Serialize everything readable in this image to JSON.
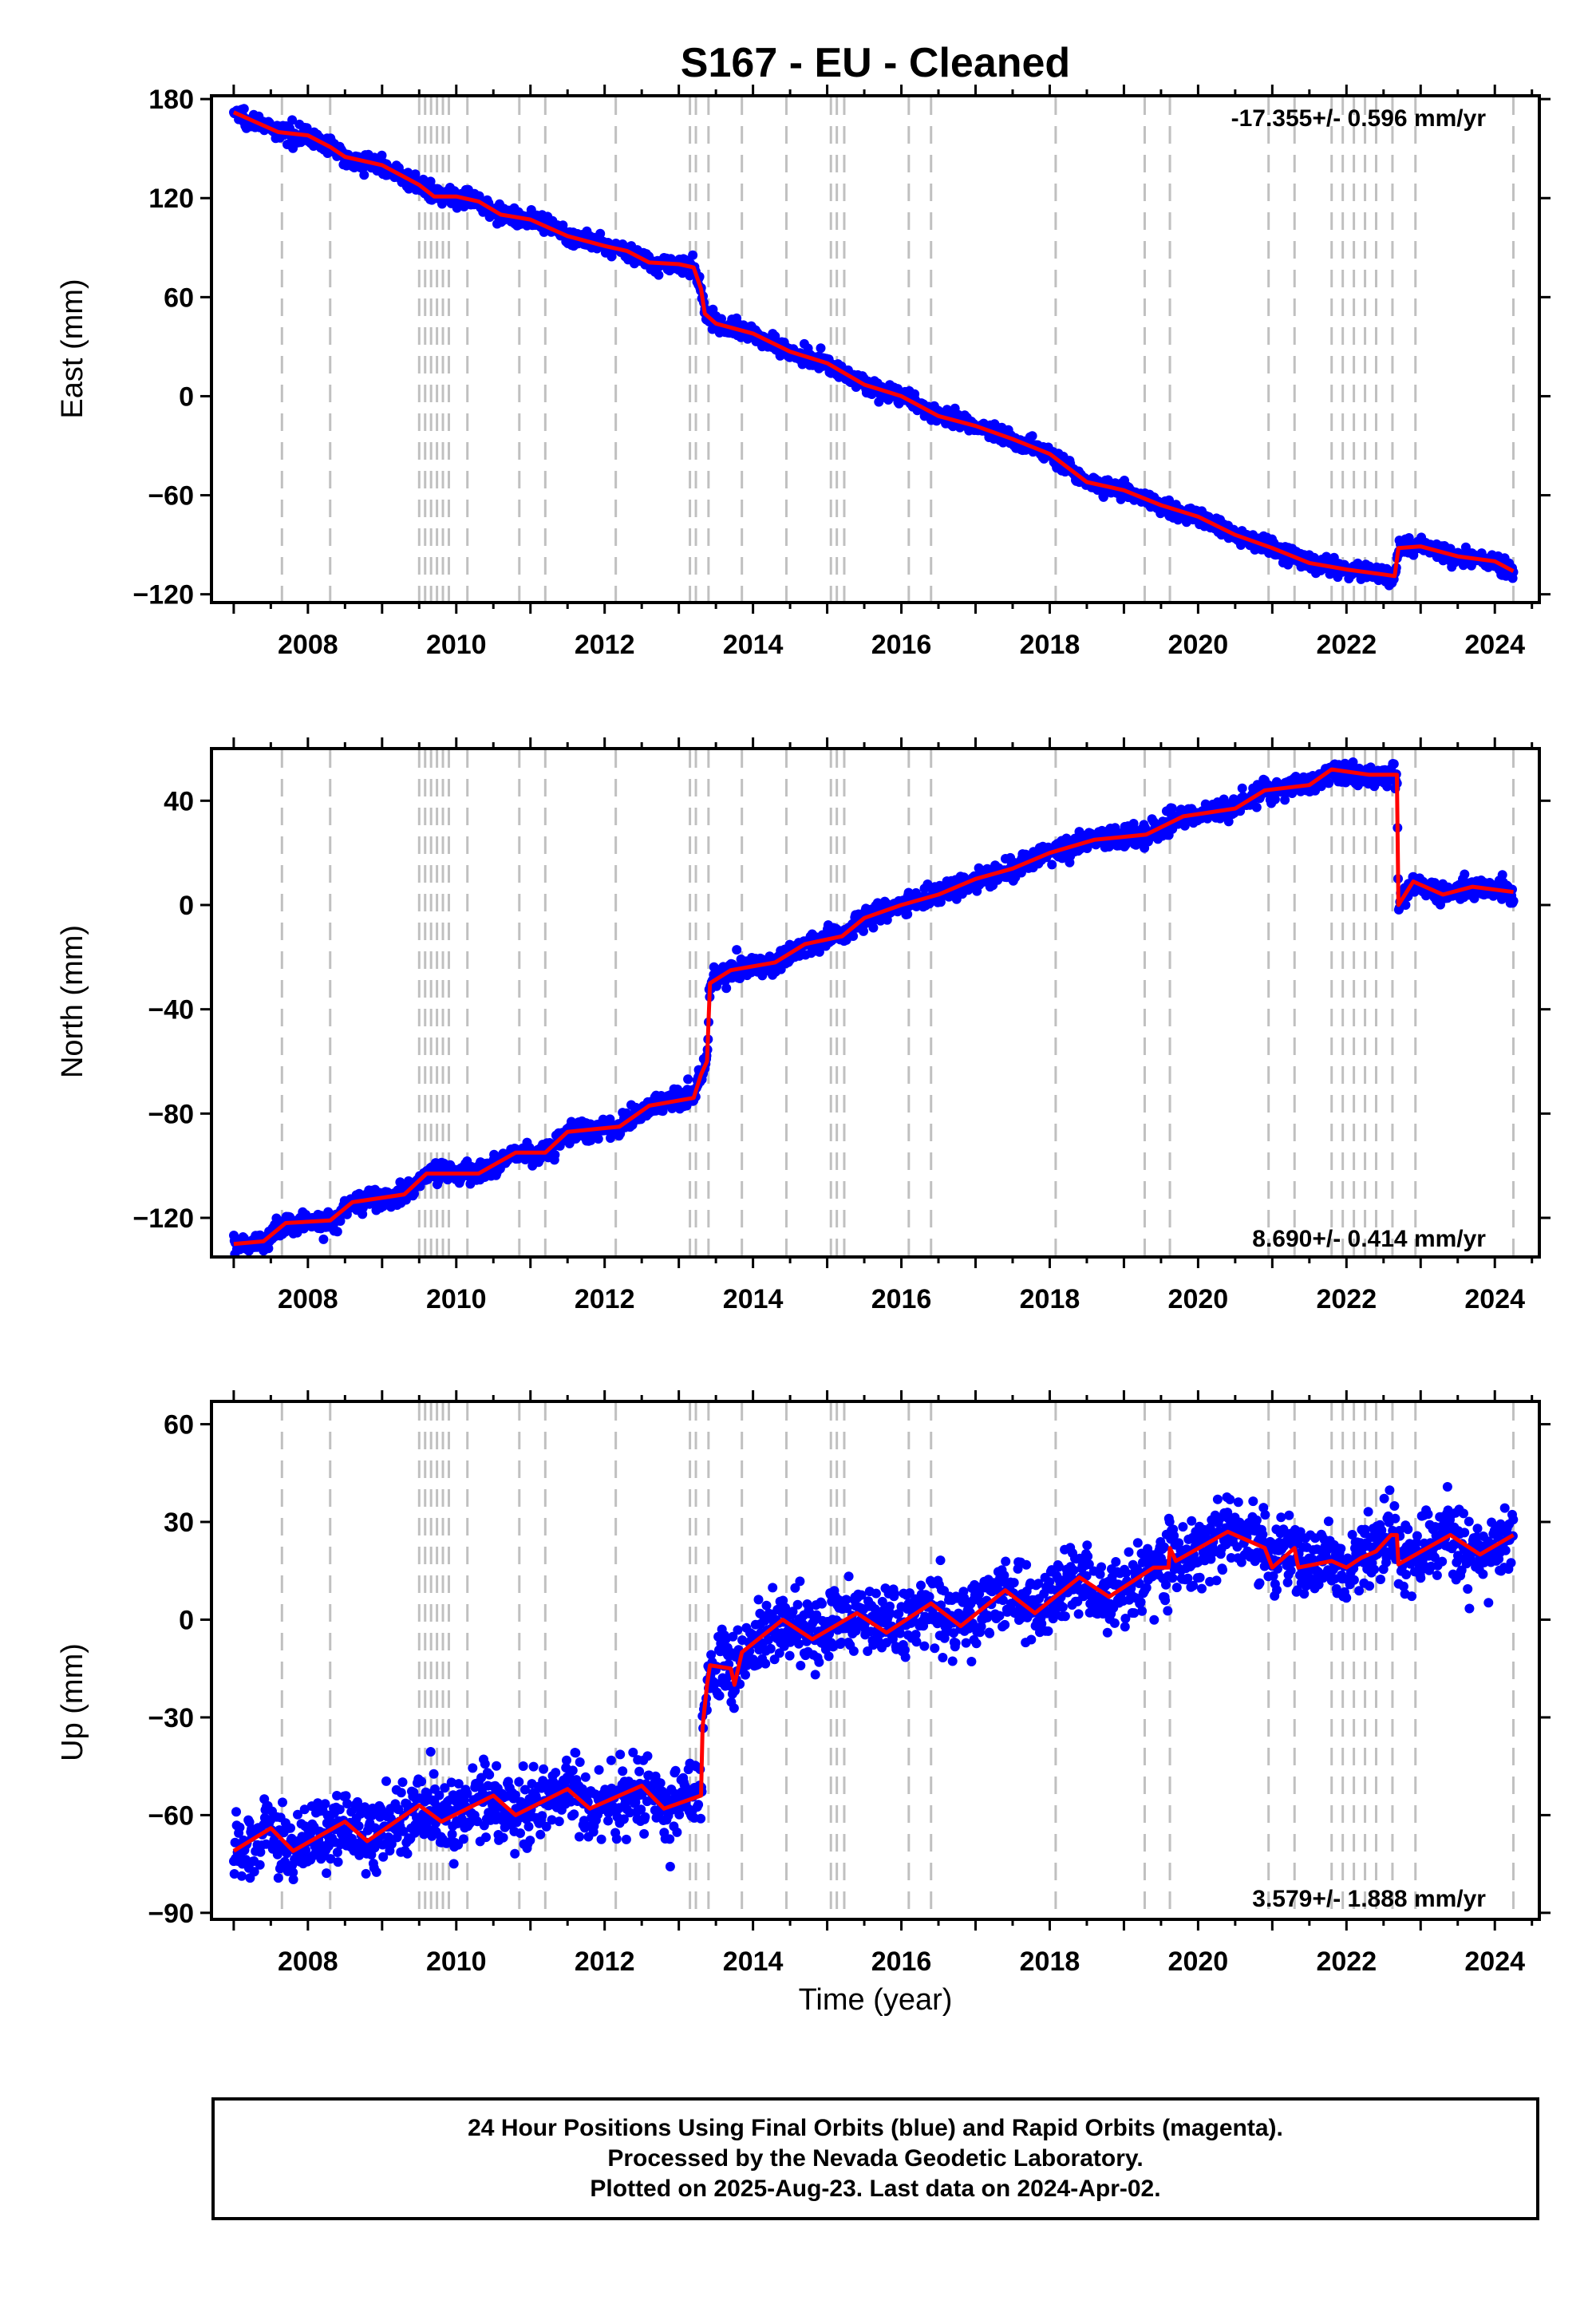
{
  "title": "S167  - EU - Cleaned",
  "xlabel": "Time (year)",
  "footer": {
    "line1": "24 Hour Positions Using Final Orbits (blue) and Rapid Orbits (magenta).",
    "line2": "Processed by the Nevada Geodetic Laboratory.",
    "line3": "Plotted on 2025-Aug-23. Last data on 2024-Apr-02."
  },
  "colors": {
    "data": "#0000ff",
    "model": "#ff0000",
    "steps": "#c0c0c0",
    "axis": "#000000"
  },
  "chart_data": [
    {
      "type": "scatter",
      "name": "east",
      "ylabel": "East (mm)",
      "rate": "-17.355+/- 0.596 mm/yr",
      "rate_position": "top-right",
      "xlim": [
        2006.7,
        2024.6
      ],
      "ylim": [
        -125,
        182
      ],
      "x_ticks": [
        2008,
        2010,
        2012,
        2014,
        2016,
        2018,
        2020,
        2022,
        2024
      ],
      "y_ticks": [
        -120,
        -60,
        0,
        60,
        120,
        180
      ],
      "y_tick_labels": [
        "−120",
        "−60",
        "0",
        "60",
        "120",
        "180"
      ],
      "model_curve": [
        [
          2007.0,
          172
        ],
        [
          2007.3,
          166
        ],
        [
          2007.6,
          160
        ],
        [
          2008.0,
          158
        ],
        [
          2008.3,
          151
        ],
        [
          2008.5,
          145
        ],
        [
          2009.0,
          140
        ],
        [
          2009.5,
          128
        ],
        [
          2009.7,
          121
        ],
        [
          2010.0,
          121
        ],
        [
          2010.3,
          118
        ],
        [
          2010.6,
          110
        ],
        [
          2011.0,
          107
        ],
        [
          2011.5,
          97
        ],
        [
          2012.0,
          91
        ],
        [
          2012.3,
          88
        ],
        [
          2012.6,
          81
        ],
        [
          2013.0,
          80
        ],
        [
          2013.2,
          78
        ],
        [
          2013.3,
          65
        ],
        [
          2013.35,
          50
        ],
        [
          2013.5,
          44
        ],
        [
          2014.0,
          38
        ],
        [
          2014.5,
          27
        ],
        [
          2015.0,
          20
        ],
        [
          2015.5,
          7
        ],
        [
          2016.0,
          0
        ],
        [
          2016.5,
          -12
        ],
        [
          2017.0,
          -18
        ],
        [
          2017.5,
          -26
        ],
        [
          2018.0,
          -35
        ],
        [
          2018.5,
          -52
        ],
        [
          2019.0,
          -57
        ],
        [
          2019.5,
          -66
        ],
        [
          2020.0,
          -73
        ],
        [
          2020.5,
          -84
        ],
        [
          2021.0,
          -92
        ],
        [
          2021.5,
          -101
        ],
        [
          2022.0,
          -105
        ],
        [
          2022.5,
          -108
        ],
        [
          2022.65,
          -109
        ],
        [
          2022.7,
          -92
        ],
        [
          2023.0,
          -91
        ],
        [
          2023.5,
          -97
        ],
        [
          2024.0,
          -100
        ],
        [
          2024.25,
          -106
        ]
      ],
      "noise_mm": 2.5,
      "step_epochs": [
        2007.65,
        2008.3,
        2009.5,
        2009.58,
        2009.66,
        2009.74,
        2009.82,
        2009.9,
        2010.15,
        2010.85,
        2011.2,
        2012.15,
        2013.15,
        2013.23,
        2013.4,
        2013.85,
        2014.45,
        2015.05,
        2015.13,
        2015.23,
        2016.1,
        2016.4,
        2018.08,
        2019.28,
        2019.62,
        2020.95,
        2021.3,
        2021.8,
        2021.95,
        2022.1,
        2022.25,
        2022.4,
        2022.62,
        2022.93,
        2024.25
      ]
    },
    {
      "type": "scatter",
      "name": "north",
      "ylabel": "North (mm)",
      "rate": "8.690+/- 0.414 mm/yr",
      "rate_position": "bottom-right",
      "xlim": [
        2006.7,
        2024.6
      ],
      "ylim": [
        -135,
        60
      ],
      "x_ticks": [
        2008,
        2010,
        2012,
        2014,
        2016,
        2018,
        2020,
        2022,
        2024
      ],
      "y_ticks": [
        -120,
        -80,
        -40,
        0,
        40
      ],
      "y_tick_labels": [
        "−120",
        "−80",
        "−40",
        "0",
        "40"
      ],
      "model_curve": [
        [
          2007.0,
          -130
        ],
        [
          2007.4,
          -129
        ],
        [
          2007.7,
          -122
        ],
        [
          2008.3,
          -121
        ],
        [
          2008.6,
          -114
        ],
        [
          2009.3,
          -111
        ],
        [
          2009.6,
          -103
        ],
        [
          2010.3,
          -103
        ],
        [
          2010.8,
          -95
        ],
        [
          2011.2,
          -95
        ],
        [
          2011.5,
          -87
        ],
        [
          2012.2,
          -85
        ],
        [
          2012.6,
          -77
        ],
        [
          2013.2,
          -74
        ],
        [
          2013.3,
          -65
        ],
        [
          2013.38,
          -60
        ],
        [
          2013.42,
          -30
        ],
        [
          2013.7,
          -25
        ],
        [
          2014.3,
          -22
        ],
        [
          2014.7,
          -15
        ],
        [
          2015.2,
          -12
        ],
        [
          2015.5,
          -5
        ],
        [
          2016.0,
          0
        ],
        [
          2016.5,
          4
        ],
        [
          2017.0,
          10
        ],
        [
          2017.5,
          14
        ],
        [
          2018.0,
          20
        ],
        [
          2018.6,
          25
        ],
        [
          2019.3,
          27
        ],
        [
          2019.8,
          34
        ],
        [
          2020.5,
          37
        ],
        [
          2020.9,
          44
        ],
        [
          2021.5,
          46
        ],
        [
          2021.8,
          52
        ],
        [
          2022.3,
          50
        ],
        [
          2022.5,
          50
        ],
        [
          2022.68,
          50
        ],
        [
          2022.7,
          0
        ],
        [
          2022.9,
          9
        ],
        [
          2023.3,
          4
        ],
        [
          2023.7,
          7
        ],
        [
          2024.25,
          5
        ]
      ],
      "noise_mm": 2.0,
      "step_epochs": [
        2007.65,
        2008.3,
        2009.5,
        2009.58,
        2009.66,
        2009.74,
        2009.82,
        2009.9,
        2010.15,
        2010.85,
        2011.2,
        2012.15,
        2013.15,
        2013.23,
        2013.4,
        2013.85,
        2014.45,
        2015.05,
        2015.13,
        2015.23,
        2016.1,
        2016.4,
        2018.08,
        2019.28,
        2019.62,
        2020.95,
        2021.3,
        2021.8,
        2021.95,
        2022.1,
        2022.25,
        2022.4,
        2022.62,
        2022.93,
        2024.25
      ]
    },
    {
      "type": "scatter",
      "name": "up",
      "ylabel": "Up (mm)",
      "rate": "3.579+/- 1.888 mm/yr",
      "rate_position": "bottom-right",
      "xlim": [
        2006.7,
        2024.6
      ],
      "ylim": [
        -92,
        67
      ],
      "x_ticks": [
        2008,
        2010,
        2012,
        2014,
        2016,
        2018,
        2020,
        2022,
        2024
      ],
      "y_ticks": [
        -90,
        -60,
        -30,
        0,
        30,
        60
      ],
      "y_tick_labels": [
        "−90",
        "−60",
        "−30",
        "0",
        "30",
        "60"
      ],
      "model_curve": [
        [
          2007.0,
          -71
        ],
        [
          2007.5,
          -64
        ],
        [
          2007.8,
          -71
        ],
        [
          2008.5,
          -62
        ],
        [
          2008.8,
          -68
        ],
        [
          2009.5,
          -57
        ],
        [
          2009.8,
          -62
        ],
        [
          2010.5,
          -54
        ],
        [
          2010.8,
          -60
        ],
        [
          2011.5,
          -52
        ],
        [
          2011.8,
          -58
        ],
        [
          2012.5,
          -51
        ],
        [
          2012.8,
          -58
        ],
        [
          2013.3,
          -54
        ],
        [
          2013.32,
          -33
        ],
        [
          2013.38,
          -20
        ],
        [
          2013.42,
          -14
        ],
        [
          2013.7,
          -15
        ],
        [
          2013.75,
          -20
        ],
        [
          2013.85,
          -10
        ],
        [
          2014.4,
          0
        ],
        [
          2014.8,
          -6
        ],
        [
          2015.4,
          2
        ],
        [
          2015.8,
          -4
        ],
        [
          2016.4,
          5
        ],
        [
          2016.8,
          -2
        ],
        [
          2017.4,
          9
        ],
        [
          2017.8,
          2
        ],
        [
          2018.4,
          13
        ],
        [
          2018.8,
          7
        ],
        [
          2019.4,
          16
        ],
        [
          2019.6,
          16
        ],
        [
          2019.62,
          22
        ],
        [
          2019.7,
          18
        ],
        [
          2020.4,
          27
        ],
        [
          2020.9,
          22
        ],
        [
          2021.0,
          16
        ],
        [
          2021.3,
          22
        ],
        [
          2021.35,
          16
        ],
        [
          2021.8,
          18
        ],
        [
          2022.0,
          16
        ],
        [
          2022.2,
          19
        ],
        [
          2022.4,
          21
        ],
        [
          2022.6,
          26
        ],
        [
          2022.68,
          26
        ],
        [
          2022.7,
          17
        ],
        [
          2023.4,
          26
        ],
        [
          2023.8,
          20
        ],
        [
          2024.25,
          26
        ]
      ],
      "noise_mm": 5.5,
      "step_epochs": [
        2007.65,
        2008.3,
        2009.5,
        2009.58,
        2009.66,
        2009.74,
        2009.82,
        2009.9,
        2010.15,
        2010.85,
        2011.2,
        2012.15,
        2013.15,
        2013.23,
        2013.4,
        2013.85,
        2014.45,
        2015.05,
        2015.13,
        2015.23,
        2016.1,
        2016.4,
        2018.08,
        2019.28,
        2019.62,
        2020.95,
        2021.3,
        2021.8,
        2021.95,
        2022.1,
        2022.25,
        2022.4,
        2022.62,
        2022.93,
        2024.25
      ]
    }
  ]
}
